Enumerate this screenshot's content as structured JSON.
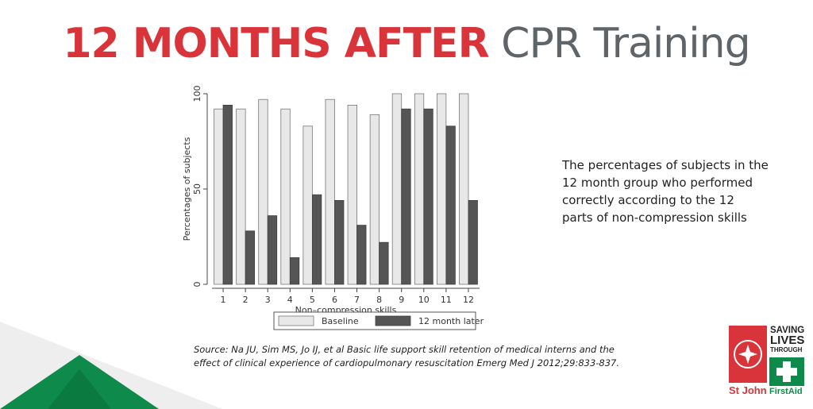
{
  "header": {
    "title_highlight": "12 MONTHS AFTER",
    "title_rest": "CPR Training"
  },
  "description": "The percentages of subjects in the 12 month group who performed correctly according to the 12 parts of non-compression skills",
  "source": "Source: Na JU, Sim MS, Jo IJ, et al Basic life support skill retention of medical interns and the effect of clinical experience of cardiopulmonary resuscitation Emerg Med J 2012;29:833-837.",
  "logo": {
    "brand": "St John",
    "tagline": [
      "SAVING",
      "LIVES",
      "THROUGH"
    ],
    "sub": "FirstAid"
  },
  "colors": {
    "title_red": "#d9343a",
    "title_grey": "#5f6468",
    "baseline": "#e8e8e8",
    "later": "#555555",
    "green": "#0e8a4a"
  },
  "chart_data": {
    "type": "bar",
    "categories": [
      "1",
      "2",
      "3",
      "4",
      "5",
      "6",
      "7",
      "8",
      "9",
      "10",
      "11",
      "12"
    ],
    "series": [
      {
        "name": "Baseline",
        "values": [
          92,
          92,
          97,
          92,
          83,
          97,
          94,
          89,
          100,
          100,
          100,
          100
        ]
      },
      {
        "name": "12 month later",
        "values": [
          94,
          28,
          36,
          14,
          47,
          44,
          31,
          22,
          92,
          92,
          83,
          44
        ]
      }
    ],
    "xlabel": "Non–compression skills",
    "ylabel": "Percentages of subjects",
    "ylim": [
      0,
      100
    ],
    "yticks": [
      "0",
      "50",
      "100"
    ],
    "legend_position": "bottom",
    "grid": false
  }
}
